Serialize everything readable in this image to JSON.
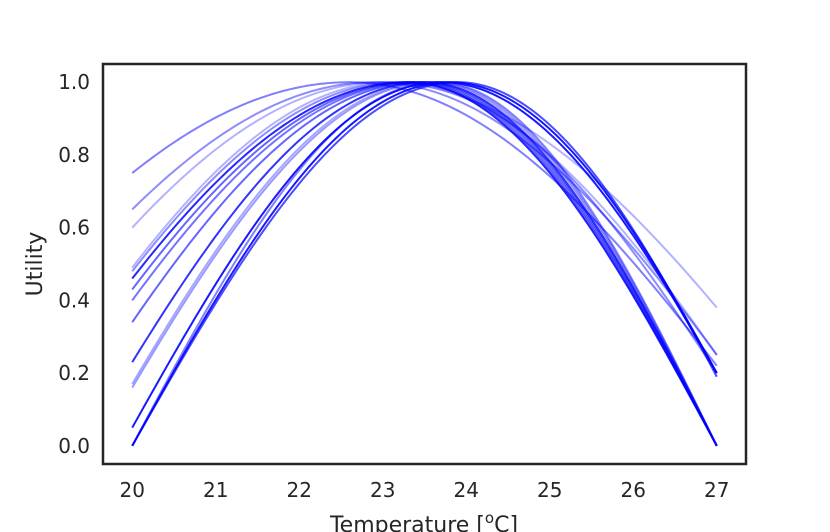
{
  "chart_data": {
    "type": "line",
    "title": "",
    "xlabel": "Temperature [",
    "xlabel_superscript": "o",
    "xlabel_suffix": "C]",
    "ylabel": "Utility",
    "xlim": [
      19.65,
      27.35
    ],
    "ylim": [
      -0.05,
      1.05
    ],
    "xticks": [
      "20",
      "21",
      "22",
      "23",
      "24",
      "25",
      "26",
      "27"
    ],
    "yticks": [
      "0.0",
      "0.2",
      "0.4",
      "0.6",
      "0.8",
      "1.0"
    ],
    "xtick_values": [
      20,
      21,
      22,
      23,
      24,
      25,
      26,
      27
    ],
    "ytick_values": [
      0.0,
      0.2,
      0.4,
      0.6,
      0.8,
      1.0
    ],
    "grid": false,
    "legend": "none",
    "line_color": "#0000ff",
    "series": [
      {
        "peak": 22.6,
        "end_values": [
          0.75,
          0.22
        ],
        "opacity": 0.5
      },
      {
        "peak": 22.9,
        "end_values": [
          0.65,
          0.25
        ],
        "opacity": 0.45
      },
      {
        "peak": 23.0,
        "end_values": [
          0.6,
          0.38
        ],
        "opacity": 0.3
      },
      {
        "peak": 23.1,
        "end_values": [
          0.49,
          0.25
        ],
        "opacity": 0.3
      },
      {
        "peak": 23.2,
        "end_values": [
          0.48,
          0.2
        ],
        "opacity": 0.45
      },
      {
        "peak": 23.3,
        "end_values": [
          0.46,
          0.0
        ],
        "opacity": 0.85
      },
      {
        "peak": 23.35,
        "end_values": [
          0.43,
          0.0
        ],
        "opacity": 0.6
      },
      {
        "peak": 23.4,
        "end_values": [
          0.4,
          0.0
        ],
        "opacity": 0.55
      },
      {
        "peak": 23.45,
        "end_values": [
          0.34,
          0.0
        ],
        "opacity": 0.6
      },
      {
        "peak": 23.5,
        "end_values": [
          0.23,
          0.0
        ],
        "opacity": 0.8
      },
      {
        "peak": 23.55,
        "end_values": [
          0.17,
          0.0
        ],
        "opacity": 0.35
      },
      {
        "peak": 23.6,
        "end_values": [
          0.16,
          0.0
        ],
        "opacity": 0.4
      },
      {
        "peak": 23.7,
        "end_values": [
          0.05,
          0.2
        ],
        "opacity": 0.9
      },
      {
        "peak": 23.8,
        "end_values": [
          0.0,
          0.2
        ],
        "opacity": 0.9
      },
      {
        "peak": 23.9,
        "end_values": [
          0.0,
          0.19
        ],
        "opacity": 0.7
      },
      {
        "peak": 23.65,
        "end_values": [
          0.0,
          0.0
        ],
        "opacity": 0.5
      }
    ]
  }
}
